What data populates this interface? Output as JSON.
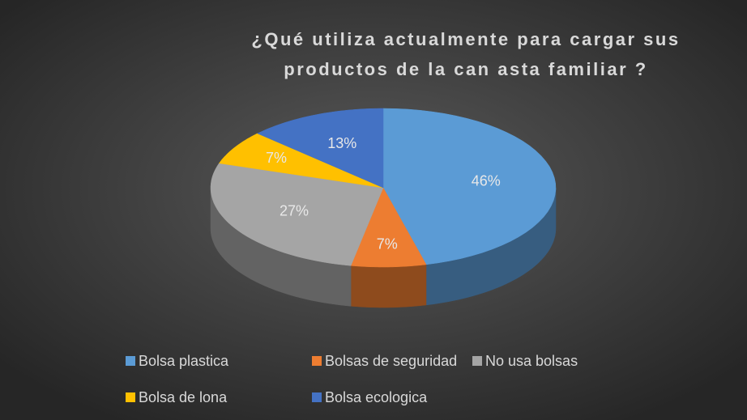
{
  "chart_data": {
    "type": "pie",
    "title": "¿Qué utiliza actualmente para cargar sus productos de la can asta familiar ?",
    "categories": [
      "Bolsa plastica",
      "Bolsas de seguridad",
      "No usa bolsas",
      "Bolsa de lona",
      "Bolsa ecologica"
    ],
    "values": [
      46,
      7,
      27,
      7,
      13
    ],
    "value_labels": [
      "46%",
      "7%",
      "27%",
      "7%",
      "13%"
    ],
    "colors": [
      "#5b9bd5",
      "#ed7d31",
      "#a5a5a5",
      "#ffc000",
      "#4472c4"
    ],
    "legend": "bottom"
  }
}
